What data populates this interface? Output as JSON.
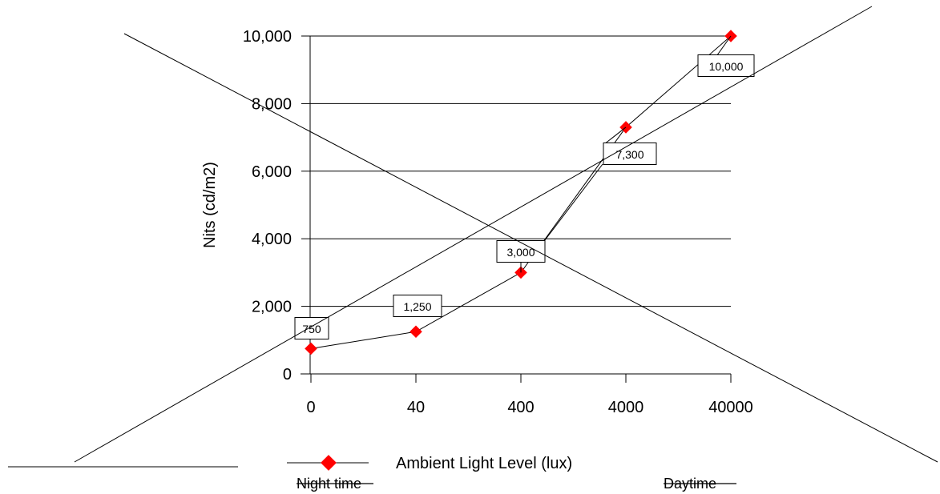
{
  "chart_data": {
    "type": "line",
    "title": "",
    "categories": [
      "0",
      "40",
      "400",
      "4000",
      "40000"
    ],
    "series": [
      {
        "name": "",
        "values": [
          750,
          1250,
          3000,
          7300,
          10000
        ],
        "color": "#ff0000",
        "marker": "diamond"
      }
    ],
    "data_labels": [
      "750",
      "1,250",
      "3,000",
      "7,300",
      "10,000"
    ],
    "ylabel": "Nits (cd/m2)",
    "xlabel": "Ambient Light Level (lux)",
    "ylim": [
      0,
      10000
    ],
    "yticks": [
      0,
      2000,
      4000,
      6000,
      8000,
      10000
    ],
    "ytick_labels": [
      "0",
      "2,000",
      "4,000",
      "6,000",
      "8,000",
      "10,000"
    ],
    "grid": true,
    "legend": "bottom",
    "annotations": {
      "left": "Night time",
      "right": "Daytime",
      "strikethrough": true
    }
  }
}
